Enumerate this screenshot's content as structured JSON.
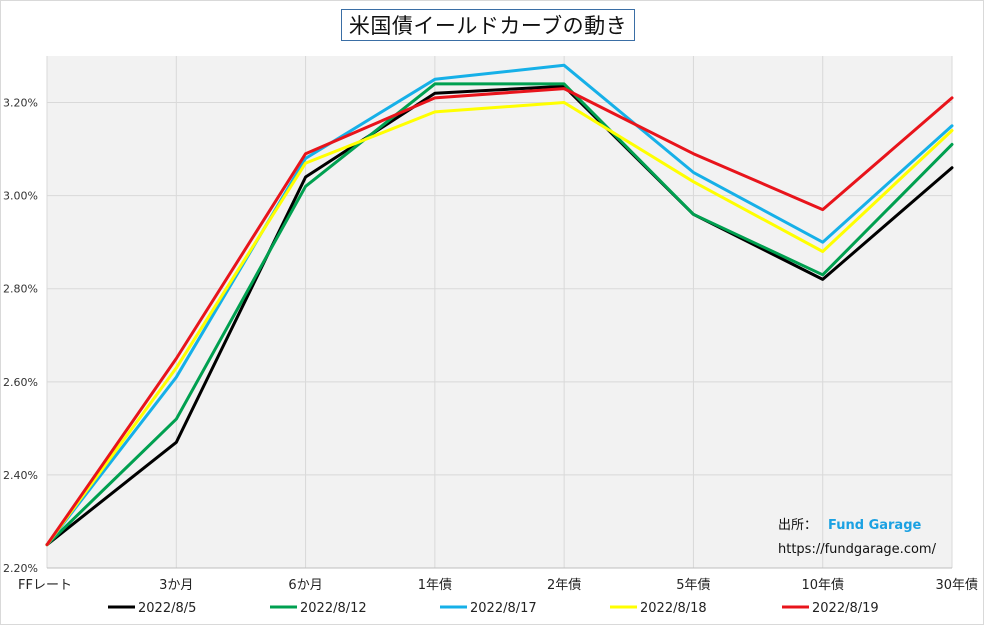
{
  "chart_data": {
    "type": "line",
    "title": "米国債イールドカーブの動き",
    "categories": [
      "FFレート",
      "3か月",
      "6か月",
      "1年債",
      "2年債",
      "5年債",
      "10年債",
      "30年債"
    ],
    "ylim": [
      2.2,
      3.3
    ],
    "yticks": [
      "2.20%",
      "2.40%",
      "2.60%",
      "2.80%",
      "3.00%",
      "3.20%"
    ],
    "ytick_values": [
      2.2,
      2.4,
      2.6,
      2.8,
      3.0,
      3.2
    ],
    "grid": true,
    "legend_position": "bottom",
    "series": [
      {
        "name": "2022/8/5",
        "color": "#000000",
        "values": [
          2.25,
          2.47,
          3.04,
          3.22,
          3.235,
          2.96,
          2.82,
          3.06
        ]
      },
      {
        "name": "2022/8/12",
        "color": "#00a050",
        "values": [
          2.25,
          2.52,
          3.02,
          3.24,
          3.24,
          2.96,
          2.83,
          3.11
        ]
      },
      {
        "name": "2022/8/17",
        "color": "#16b0e8",
        "values": [
          2.25,
          2.61,
          3.08,
          3.25,
          3.28,
          3.05,
          2.9,
          3.15
        ]
      },
      {
        "name": "2022/8/18",
        "color": "#ffff00",
        "values": [
          2.25,
          2.63,
          3.07,
          3.18,
          3.2,
          3.03,
          2.88,
          3.14
        ]
      },
      {
        "name": "2022/8/19",
        "color": "#e8141b",
        "values": [
          2.25,
          2.65,
          3.09,
          3.21,
          3.23,
          3.09,
          2.97,
          3.21
        ]
      }
    ]
  },
  "source": {
    "label": "出所：",
    "name": "Fund Garage",
    "url": "https://fundgarage.com/"
  }
}
